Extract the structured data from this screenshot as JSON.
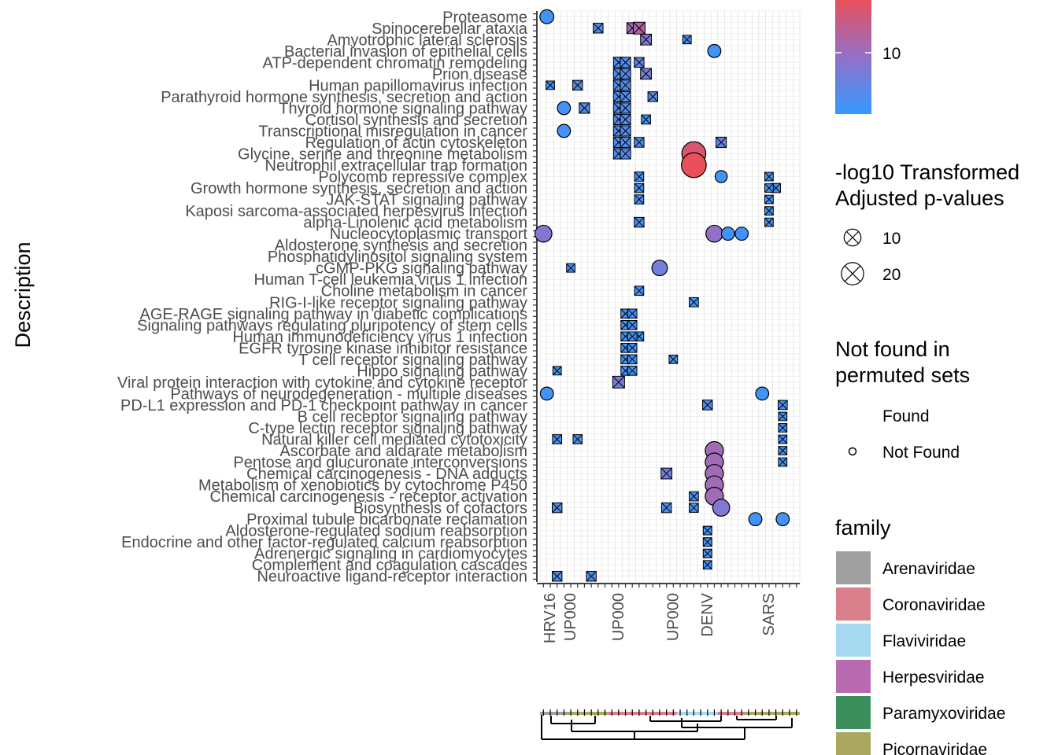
{
  "chart_data": {
    "type": "scatter",
    "subtype": "dot-matrix bubble plot with dendrogram",
    "ylabel": "Description",
    "xlabel": "",
    "grid": true,
    "y_categories": [
      "Proteasome",
      "Spinocerebellar ataxia",
      "Amyotrophic lateral sclerosis",
      "Bacterial invasion of epithelial cells",
      "ATP-dependent chromatin remodeling",
      "Prion disease",
      "Human papillomavirus infection",
      "Parathyroid hormone synthesis, secretion and action",
      "Thyroid hormone signaling pathway",
      "Cortisol synthesis and secretion",
      "Transcriptional misregulation in cancer",
      "Regulation of actin cytoskeleton",
      "Glycine, serine and threonine metabolism",
      "Neutrophil extracellular trap formation",
      "Polycomb repressive complex",
      "Growth hormone synthesis, secretion and action",
      "JAK-STAT signaling pathway",
      "Kaposi sarcoma-associated herpesvirus infection",
      "alpha-Linolenic acid metabolism",
      "Nucleocytoplasmic transport",
      "Aldosterone synthesis and secretion",
      "Phosphatidylinositol signaling system",
      "cGMP-PKG signaling pathway",
      "Human T-cell leukemia virus 1 infection",
      "Choline metabolism in cancer",
      "RIG-I-like receptor signaling pathway",
      "AGE-RAGE signaling pathway in diabetic complications",
      "Signaling pathways regulating pluripotency of stem cells",
      "Human immunodeficiency virus 1 infection",
      "EGFR tyrosine kinase inhibitor resistance",
      "T cell receptor signaling pathway",
      "Hippo signaling pathway",
      "Viral protein interaction with cytokine and cytokine receptor",
      "Pathways of neurodegeneration - multiple diseases",
      "PD-L1 expression and PD-1 checkpoint pathway in cancer",
      "B cell receptor signaling pathway",
      "C-type lectin receptor signaling pathway",
      "Natural killer cell mediated cytotoxicity",
      "Ascorbate and aldarate metabolism",
      "Pentose and glucuronate interconversions",
      "Chemical carcinogenesis - DNA adducts",
      "Metabolism of xenobiotics by cytochrome P450",
      "Chemical carcinogenesis - receptor activation",
      "Biosynthesis of cofactors",
      "Proximal tubule bicarbonate reclamation",
      "Aldosterone-regulated sodium reabsorption",
      "Endocrine and other factor-regulated calcium reabsorption",
      "Adrenergic signaling in cardiomyocytes",
      "Complement and coagulation cascades",
      "Neuroactive ligand-receptor interaction"
    ],
    "x_categories": [
      "HRV16",
      "UP000",
      "UP000",
      "UP000",
      "DENV",
      "SARS"
    ],
    "color_scale": {
      "title": "",
      "tick": 10,
      "low_color": "#3399ff",
      "mid_color": "#9370c8",
      "high_color": "#e8505b"
    },
    "size_legend": {
      "title_line1": "-log10 Transformed",
      "title_line2": "Adjusted p-values",
      "entries": [
        {
          "label": "10",
          "value": 10
        },
        {
          "label": "20",
          "value": 20
        }
      ]
    },
    "shape_legend": {
      "title_line1": "Not found in",
      "title_line2": "permuted sets",
      "entries": [
        {
          "label": "Found",
          "shape": "x"
        },
        {
          "label": "Not Found",
          "shape": "circle"
        }
      ]
    },
    "family_legend": {
      "title": "family",
      "entries": [
        {
          "label": "Arenaviridae",
          "color": "#a0a0a0"
        },
        {
          "label": "Coronaviridae",
          "color": "#d9808c"
        },
        {
          "label": "Flaviviridae",
          "color": "#a6d8f0"
        },
        {
          "label": "Herpesviridae",
          "color": "#b86bb0"
        },
        {
          "label": "Paramyxoviridae",
          "color": "#3a8f5c"
        },
        {
          "label": "Picornaviridae",
          "color": "#aaa860"
        }
      ]
    },
    "points": [
      {
        "x": 0.5,
        "y": 0,
        "p": 6,
        "c": 5,
        "s": "circle"
      },
      {
        "x": 8,
        "y": 1,
        "p": 6,
        "c": 6,
        "s": "x"
      },
      {
        "x": 13,
        "y": 1,
        "p": 8,
        "c": 11,
        "s": "x"
      },
      {
        "x": 14,
        "y": 1,
        "p": 10,
        "c": 12,
        "s": "x"
      },
      {
        "x": 15,
        "y": 2,
        "p": 8,
        "c": 9,
        "s": "x"
      },
      {
        "x": 21,
        "y": 2,
        "p": 4,
        "c": 5,
        "s": "x"
      },
      {
        "x": 25,
        "y": 3,
        "p": 5,
        "c": 5,
        "s": "circle"
      },
      {
        "x": 14,
        "y": 4,
        "p": 6,
        "c": 7,
        "s": "x"
      },
      {
        "x": 15,
        "y": 5,
        "p": 8,
        "c": 8,
        "s": "x"
      },
      {
        "x": 1,
        "y": 6,
        "p": 4,
        "c": 5,
        "s": "x"
      },
      {
        "x": 5,
        "y": 6,
        "p": 6,
        "c": 6,
        "s": "x"
      },
      {
        "x": 16,
        "y": 7,
        "p": 6,
        "c": 6,
        "s": "x"
      },
      {
        "x": 3,
        "y": 8,
        "p": 5,
        "c": 5,
        "s": "circle"
      },
      {
        "x": 6,
        "y": 8,
        "p": 7,
        "c": 6,
        "s": "x"
      },
      {
        "x": 15,
        "y": 9,
        "p": 5,
        "c": 5,
        "s": "x"
      },
      {
        "x": 3,
        "y": 10,
        "p": 5,
        "c": 5,
        "s": "circle"
      },
      {
        "x": 14,
        "y": 11,
        "p": 6,
        "c": 6,
        "s": "x"
      },
      {
        "x": 26,
        "y": 11,
        "p": 7,
        "c": 7,
        "s": "x"
      },
      {
        "x": 22,
        "y": 12,
        "p": 24,
        "c": 15,
        "s": "circle"
      },
      {
        "x": 22,
        "y": 13,
        "p": 26,
        "c": 16,
        "s": "circle"
      },
      {
        "x": 14,
        "y": 14,
        "p": 5,
        "c": 5,
        "s": "x"
      },
      {
        "x": 26,
        "y": 14,
        "p": 4,
        "c": 5,
        "s": "circle"
      },
      {
        "x": 14,
        "y": 15,
        "p": 5,
        "c": 5,
        "s": "x"
      },
      {
        "x": 34,
        "y": 15,
        "p": 5,
        "c": 5,
        "s": "x"
      },
      {
        "x": 14,
        "y": 16,
        "p": 5,
        "c": 5,
        "s": "x"
      },
      {
        "x": 14,
        "y": 18,
        "p": 6,
        "c": 6,
        "s": "x"
      },
      {
        "x": 0,
        "y": 19,
        "p": 10,
        "c": 9,
        "s": "circle"
      },
      {
        "x": 25,
        "y": 19,
        "p": 10,
        "c": 10,
        "s": "circle"
      },
      {
        "x": 27,
        "y": 19,
        "p": 5,
        "c": 5,
        "s": "circle"
      },
      {
        "x": 29,
        "y": 19,
        "p": 5,
        "c": 5,
        "s": "circle"
      },
      {
        "x": 4,
        "y": 22,
        "p": 4,
        "c": 5,
        "s": "x"
      },
      {
        "x": 17,
        "y": 22,
        "p": 8,
        "c": 8,
        "s": "circle"
      },
      {
        "x": 14,
        "y": 24,
        "p": 5,
        "c": 5,
        "s": "x"
      },
      {
        "x": 22,
        "y": 25,
        "p": 5,
        "c": 5,
        "s": "x"
      },
      {
        "x": 14,
        "y": 28,
        "p": 5,
        "c": 5,
        "s": "x"
      },
      {
        "x": 19,
        "y": 30,
        "p": 4,
        "c": 5,
        "s": "x"
      },
      {
        "x": 2,
        "y": 31,
        "p": 4,
        "c": 5,
        "s": "x"
      },
      {
        "x": 11,
        "y": 32,
        "p": 10,
        "c": 8,
        "s": "x"
      },
      {
        "x": 0.5,
        "y": 33,
        "p": 5,
        "c": 5,
        "s": "circle"
      },
      {
        "x": 32,
        "y": 33,
        "p": 5,
        "c": 5,
        "s": "circle"
      },
      {
        "x": 24,
        "y": 34,
        "p": 6,
        "c": 6,
        "s": "x"
      },
      {
        "x": 35,
        "y": 34,
        "p": 5,
        "c": 5,
        "s": "x"
      },
      {
        "x": 2,
        "y": 37,
        "p": 5,
        "c": 5,
        "s": "x"
      },
      {
        "x": 5,
        "y": 37,
        "p": 5,
        "c": 5,
        "s": "x"
      },
      {
        "x": 25,
        "y": 38,
        "p": 12,
        "c": 11,
        "s": "circle"
      },
      {
        "x": 25,
        "y": 39,
        "p": 12,
        "c": 11,
        "s": "circle"
      },
      {
        "x": 18,
        "y": 40,
        "p": 8,
        "c": 8,
        "s": "x"
      },
      {
        "x": 25,
        "y": 40,
        "p": 12,
        "c": 11,
        "s": "circle"
      },
      {
        "x": 25,
        "y": 41,
        "p": 12,
        "c": 11,
        "s": "circle"
      },
      {
        "x": 22,
        "y": 42,
        "p": 5,
        "c": 5,
        "s": "x"
      },
      {
        "x": 25,
        "y": 42,
        "p": 12,
        "c": 11,
        "s": "circle"
      },
      {
        "x": 2,
        "y": 43,
        "p": 6,
        "c": 6,
        "s": "x"
      },
      {
        "x": 18,
        "y": 43,
        "p": 6,
        "c": 6,
        "s": "x"
      },
      {
        "x": 22,
        "y": 43,
        "p": 5,
        "c": 5,
        "s": "x"
      },
      {
        "x": 26,
        "y": 43,
        "p": 10,
        "c": 9,
        "s": "circle"
      },
      {
        "x": 31,
        "y": 44,
        "p": 5,
        "c": 5,
        "s": "circle"
      },
      {
        "x": 35,
        "y": 44,
        "p": 5,
        "c": 5,
        "s": "circle"
      },
      {
        "x": 24,
        "y": 45,
        "p": 4,
        "c": 5,
        "s": "x"
      },
      {
        "x": 24,
        "y": 46,
        "p": 4,
        "c": 5,
        "s": "x"
      },
      {
        "x": 24,
        "y": 47,
        "p": 4,
        "c": 5,
        "s": "x"
      },
      {
        "x": 2,
        "y": 49,
        "p": 6,
        "c": 6,
        "s": "x"
      },
      {
        "x": 7,
        "y": 49,
        "p": 6,
        "c": 6,
        "s": "x"
      }
    ],
    "columns_dense": [
      {
        "x": 11,
        "y_from": 4,
        "y_to": 12,
        "p": 7,
        "c": 6
      },
      {
        "x": 12,
        "y_from": 4,
        "y_to": 12,
        "p": 7,
        "c": 6
      },
      {
        "x": 12,
        "y_from": 26,
        "y_to": 31,
        "p": 5,
        "c": 5
      },
      {
        "x": 13,
        "y_from": 26,
        "y_to": 31,
        "p": 5,
        "c": 5
      },
      {
        "x": 33,
        "y_from": 14,
        "y_to": 18,
        "p": 4,
        "c": 5
      },
      {
        "x": 35,
        "y_from": 35,
        "y_to": 39,
        "p": 4,
        "c": 5
      },
      {
        "x": 24,
        "y_from": 45,
        "y_to": 48,
        "p": 4,
        "c": 5
      }
    ]
  }
}
